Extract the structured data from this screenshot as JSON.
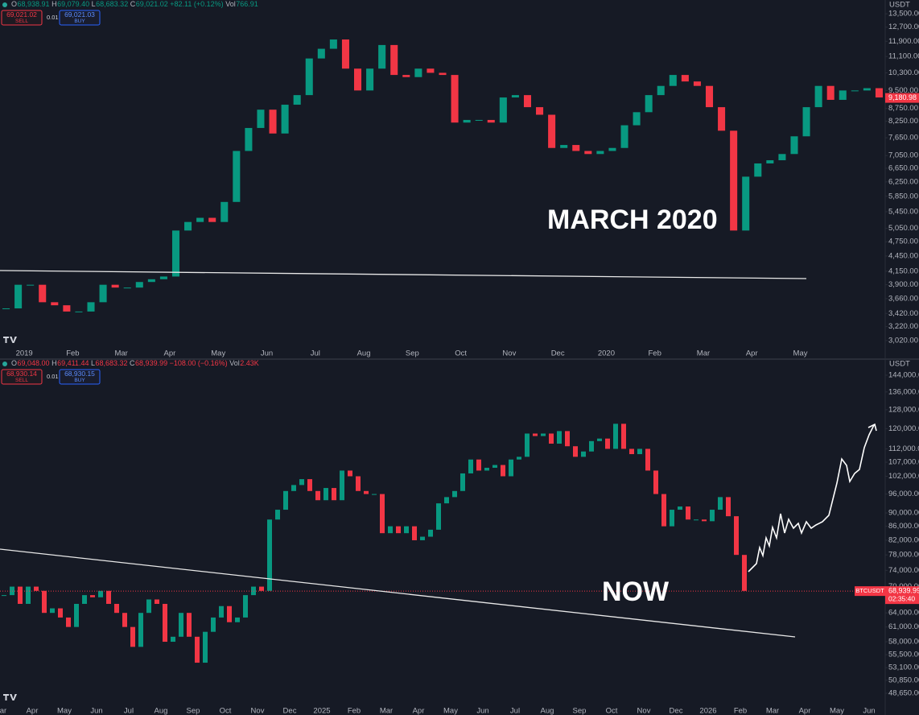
{
  "chart_data": [
    {
      "type": "candlestick",
      "header": {
        "ohlc": [
          {
            "label": "O",
            "value": "68,938.91"
          },
          {
            "label": "H",
            "value": "69,079.40"
          },
          {
            "label": "L",
            "value": "68,683.32"
          },
          {
            "label": "C",
            "value": "69,021.02"
          }
        ],
        "change": "+82.11 (+0.12%)",
        "volume": {
          "label": "Vol",
          "value": "766.91"
        }
      },
      "sell": {
        "price": "69,021.02",
        "label": "SELL"
      },
      "quantity": "0.01",
      "buy": {
        "price": "69,021.03",
        "label": "BUY"
      },
      "currency": "USDT",
      "annotation": "MARCH 2020",
      "last_price": {
        "value": 9180.98,
        "label": "9,180.98"
      },
      "colors": {
        "up": "#089981",
        "down": "#f23645"
      },
      "log_scale": true,
      "ylim": [
        2921,
        14380
      ],
      "yticks": [
        {
          "value": 13500,
          "label": "13,500.00"
        },
        {
          "value": 12700,
          "label": "12,700.00"
        },
        {
          "value": 11900,
          "label": "11,900.00"
        },
        {
          "value": 11100,
          "label": "11,100.00"
        },
        {
          "value": 10300,
          "label": "10,300.00"
        },
        {
          "value": 9500,
          "label": "9,500.00"
        },
        {
          "value": 8750,
          "label": "8,750.00"
        },
        {
          "value": 8250,
          "label": "8,250.00"
        },
        {
          "value": 7650,
          "label": "7,650.00"
        },
        {
          "value": 7050,
          "label": "7,050.00"
        },
        {
          "value": 6650,
          "label": "6,650.00"
        },
        {
          "value": 6250,
          "label": "6,250.00"
        },
        {
          "value": 5850,
          "label": "5,850.00"
        },
        {
          "value": 5450,
          "label": "5,450.00"
        },
        {
          "value": 5050,
          "label": "5,050.00"
        },
        {
          "value": 4750,
          "label": "4,750.00"
        },
        {
          "value": 4450,
          "label": "4,450.00"
        },
        {
          "value": 4150,
          "label": "4,150.00"
        },
        {
          "value": 3900,
          "label": "3,900.00"
        },
        {
          "value": 3660,
          "label": "3,660.00"
        },
        {
          "value": 3420,
          "label": "3,420.00"
        },
        {
          "value": 3220,
          "label": "3,220.00"
        },
        {
          "value": 3020,
          "label": "3,020.00"
        }
      ],
      "categories": [
        null,
        null,
        "2019",
        null,
        null,
        null,
        "Feb",
        null,
        null,
        null,
        "Mar",
        null,
        null,
        null,
        "Apr",
        null,
        null,
        null,
        "May",
        null,
        null,
        null,
        "Jun",
        null,
        null,
        null,
        "Jul",
        null,
        null,
        null,
        "Aug",
        null,
        null,
        null,
        "Sep",
        null,
        null,
        null,
        "Oct",
        null,
        null,
        null,
        "Nov",
        null,
        null,
        null,
        "Dec",
        null,
        null,
        null,
        "2020",
        null,
        null,
        null,
        "Feb",
        null,
        null,
        null,
        "Mar",
        null,
        null,
        null,
        "Apr",
        null,
        null,
        null,
        "May",
        null,
        null,
        null,
        null,
        null,
        null
      ],
      "values": [
        3500,
        3900,
        3900,
        3600,
        3550,
        3450,
        3450,
        3600,
        3900,
        3850,
        3850,
        3950,
        4000,
        4050,
        5000,
        5200,
        5300,
        5200,
        5700,
        7200,
        8000,
        8700,
        7800,
        8900,
        9300,
        11000,
        11500,
        12000,
        10500,
        9500,
        10500,
        11700,
        10200,
        10100,
        10500,
        10300,
        10200,
        8200,
        8300,
        8300,
        8200,
        9200,
        9300,
        8800,
        8500,
        7300,
        7400,
        7200,
        7100,
        7200,
        7300,
        8100,
        8600,
        9300,
        9700,
        10200,
        9900,
        9700,
        8800,
        7900,
        5000,
        6400,
        6800,
        6900,
        7100,
        7700,
        8800,
        9700,
        9100,
        9500,
        9500,
        9600,
        9200
      ]
    },
    {
      "type": "candlestick",
      "header": {
        "ohlc": [
          {
            "label": "O",
            "value": "69,048.00"
          },
          {
            "label": "H",
            "value": "69,411.44"
          },
          {
            "label": "L",
            "value": "68,683.32"
          },
          {
            "label": "C",
            "value": "68,939.99"
          }
        ],
        "change": "−108.00 (−0.16%)",
        "volume": {
          "label": "Vol",
          "value": "2.43K"
        }
      },
      "sell": {
        "price": "68,930.14",
        "label": "SELL"
      },
      "quantity": "0.01",
      "buy": {
        "price": "68,930.15",
        "label": "BUY"
      },
      "currency": "USDT",
      "annotation": "NOW",
      "symbol": "BTCUSDT",
      "countdown": "02:35:40",
      "last_price": {
        "value": 68939.99,
        "label": "68,939.99"
      },
      "price_line": true,
      "colors": {
        "up": "#089981",
        "down": "#f23645"
      },
      "log_scale": true,
      "ylim": [
        46180,
        148400
      ],
      "yticks": [
        {
          "value": 144000,
          "label": "144,000.00"
        },
        {
          "value": 136000,
          "label": "136,000.00"
        },
        {
          "value": 128000,
          "label": "128,000.00"
        },
        {
          "value": 120000,
          "label": "120,000.00"
        },
        {
          "value": 112000,
          "label": "112,000.00"
        },
        {
          "value": 107000,
          "label": "107,000.00"
        },
        {
          "value": 102000,
          "label": "102,000.00"
        },
        {
          "value": 96000,
          "label": "96,000.00"
        },
        {
          "value": 90000,
          "label": "90,000.00"
        },
        {
          "value": 86000,
          "label": "86,000.00"
        },
        {
          "value": 82000,
          "label": "82,000.00"
        },
        {
          "value": 78000,
          "label": "78,000.00"
        },
        {
          "value": 74000,
          "label": "74,000.00"
        },
        {
          "value": 70000,
          "label": "70,000.00"
        },
        {
          "value": 64000,
          "label": "64,000.00"
        },
        {
          "value": 61000,
          "label": "61,000.00"
        },
        {
          "value": 58000,
          "label": "58,000.00"
        },
        {
          "value": 55500,
          "label": "55,500.00"
        },
        {
          "value": 53100,
          "label": "53,100.00"
        },
        {
          "value": 50850,
          "label": "50,850.00"
        },
        {
          "value": 48650,
          "label": "48,650.00"
        }
      ],
      "categories": [
        "Mar",
        null,
        null,
        null,
        "Apr",
        null,
        null,
        null,
        "May",
        null,
        null,
        null,
        "Jun",
        null,
        null,
        null,
        "Jul",
        null,
        null,
        null,
        "Aug",
        null,
        null,
        null,
        "Sep",
        null,
        null,
        null,
        "Oct",
        null,
        null,
        null,
        "Nov",
        null,
        null,
        null,
        "Dec",
        null,
        null,
        null,
        "2025",
        null,
        null,
        null,
        "Feb",
        null,
        null,
        null,
        "Mar",
        null,
        null,
        null,
        "Apr",
        null,
        null,
        null,
        "May",
        null,
        null,
        null,
        "Jun",
        null,
        null,
        null,
        "Jul",
        null,
        null,
        null,
        "Aug",
        null,
        null,
        null,
        "Sep",
        null,
        null,
        null,
        "Oct",
        null,
        null,
        null,
        "Nov",
        null,
        null,
        null,
        "Dec",
        null,
        null,
        null,
        "2026",
        null,
        null,
        null,
        "Feb",
        null,
        null,
        null,
        "Mar",
        null,
        null,
        null,
        "Apr",
        null,
        null,
        null,
        "May",
        null,
        null,
        null,
        "Jun",
        null
      ],
      "values": [
        68000,
        70000,
        66000,
        70000,
        69000,
        64000,
        65000,
        63000,
        61000,
        66000,
        68000,
        67500,
        69000,
        66000,
        64000,
        61000,
        57000,
        64000,
        67000,
        66000,
        58000,
        59000,
        64000,
        59000,
        54000,
        60000,
        63000,
        65500,
        62000,
        63000,
        68000,
        70000,
        69000,
        88000,
        91000,
        97000,
        99000,
        101000,
        97000,
        94000,
        98000,
        94000,
        104000,
        102000,
        97000,
        96000,
        96000,
        84000,
        86000,
        84000,
        86000,
        82000,
        83000,
        85000,
        93000,
        95000,
        97000,
        103000,
        108000,
        104000,
        105000,
        106000,
        102000,
        108000,
        109000,
        118000,
        117000,
        118000,
        114000,
        119000,
        113000,
        109000,
        111000,
        115000,
        116000,
        112000,
        122000,
        112000,
        110000,
        112000,
        104000,
        96000,
        86000,
        91000,
        92000,
        88000,
        88000,
        87500,
        91000,
        95000,
        89000,
        78000,
        69000,
        null,
        null,
        null,
        null,
        null,
        null,
        null,
        null,
        null,
        null,
        null,
        null,
        null,
        null,
        null,
        null,
        null
      ]
    }
  ]
}
